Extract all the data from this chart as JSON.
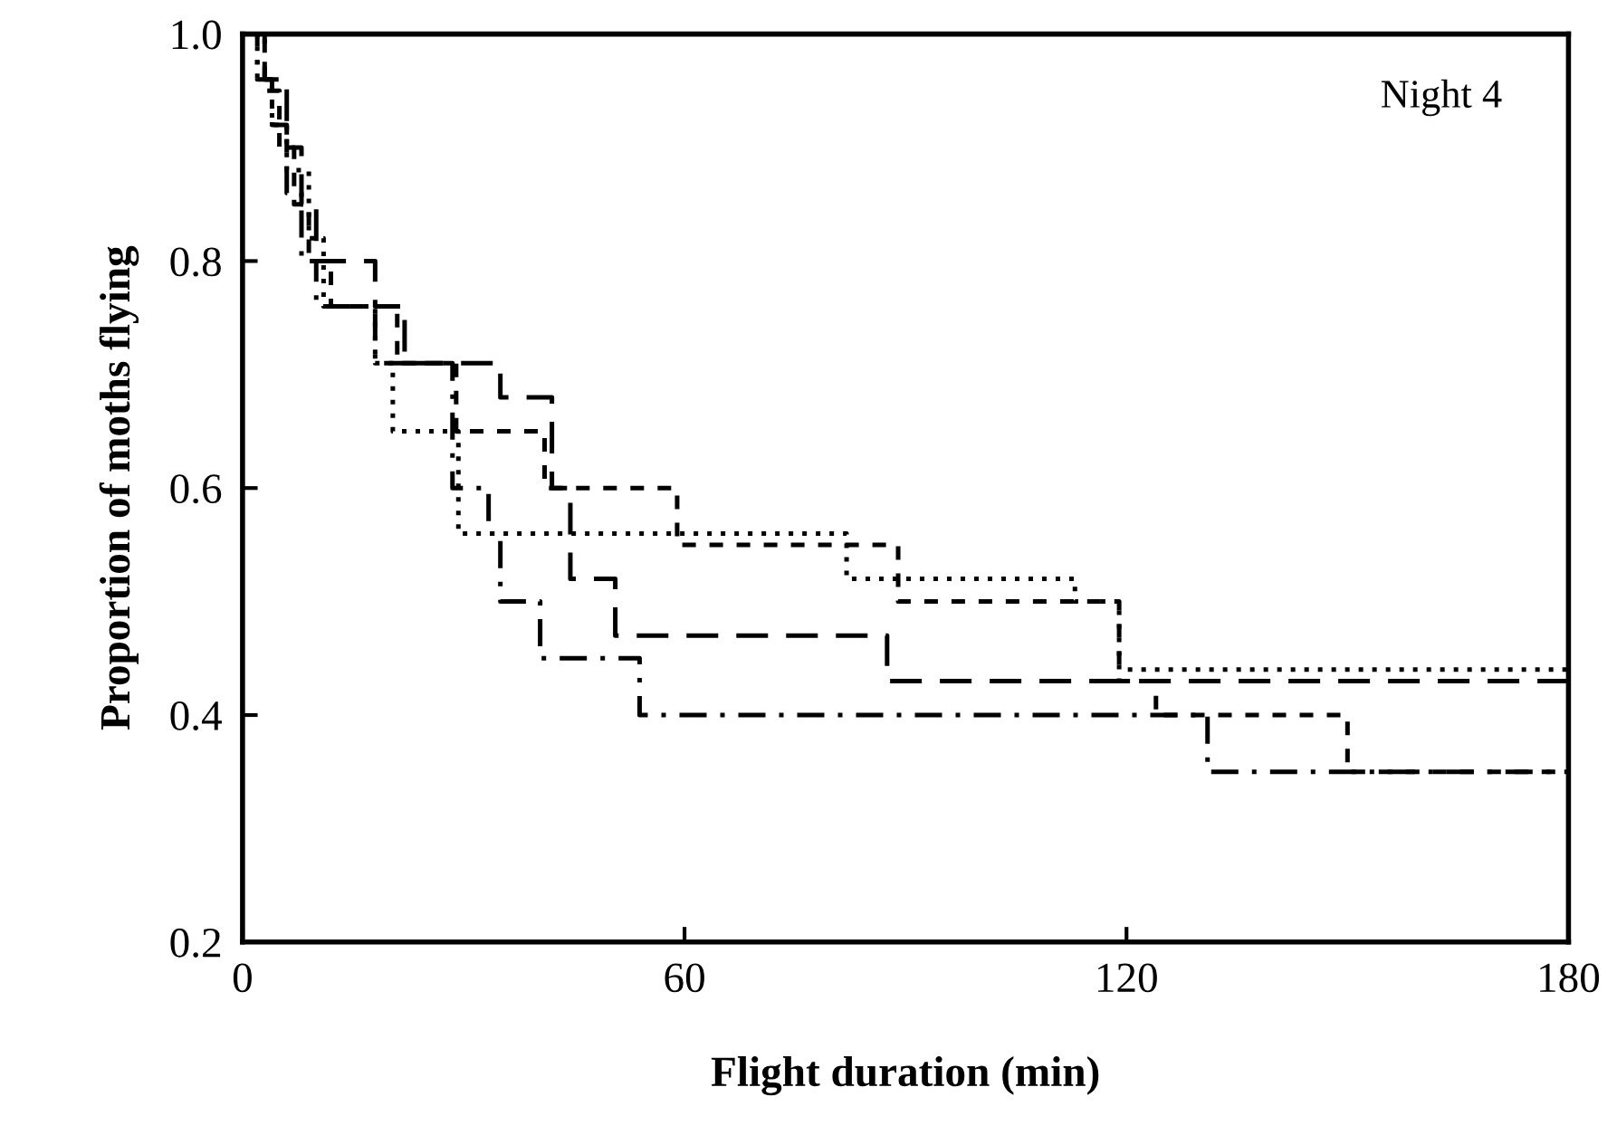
{
  "chart_data": {
    "type": "step",
    "xlabel": "Flight duration (min)",
    "ylabel": "Proportion of moths flying",
    "annotations": [
      "Night 4"
    ],
    "xlim": [
      0,
      180
    ],
    "xticks": [
      0,
      60,
      120,
      180
    ],
    "ylim": [
      0.2,
      1.0
    ],
    "yticks": [
      {
        "value": 0.2,
        "label": "0.2"
      },
      {
        "value": 0.4,
        "label": "0.4"
      },
      {
        "value": 0.6,
        "label": "0.6"
      },
      {
        "value": 0.8,
        "label": "0.8"
      },
      {
        "value": 1.0,
        "label": "1.0"
      }
    ],
    "grid": false,
    "marker": "none",
    "series": [
      {
        "color": "#000000",
        "line_style": "dashed",
        "x": [
          0,
          3,
          6,
          8,
          10,
          18,
          22,
          35,
          42,
          44.5,
          50.6,
          87.5,
          180
        ],
        "values": [
          1.0,
          0.96,
          0.9,
          0.85,
          0.8,
          0.76,
          0.71,
          0.68,
          0.6,
          0.52,
          0.47,
          0.43,
          0.43
        ]
      },
      {
        "color": "#000000",
        "line_style": "dotted",
        "x": [
          0,
          2,
          4,
          6,
          9,
          11,
          18,
          20.4,
          29.3,
          82,
          113,
          119,
          180
        ],
        "values": [
          1.0,
          0.96,
          0.92,
          0.88,
          0.82,
          0.76,
          0.71,
          0.65,
          0.56,
          0.52,
          0.5,
          0.44,
          0.44
        ]
      },
      {
        "color": "#000000",
        "line_style": "dashdot",
        "x": [
          0,
          2,
          4,
          6,
          8,
          10,
          18,
          28.5,
          33.4,
          35,
          40.4,
          53.9,
          131,
          180
        ],
        "values": [
          1.0,
          0.96,
          0.92,
          0.86,
          0.8,
          0.76,
          0.71,
          0.6,
          0.56,
          0.5,
          0.45,
          0.4,
          0.35,
          0.35
        ]
      },
      {
        "color": "#000000",
        "line_style": "shortdash",
        "x": [
          0,
          3,
          5,
          7,
          9,
          12,
          21,
          29,
          41,
          59,
          89,
          119,
          124,
          150,
          180
        ],
        "values": [
          1.0,
          0.95,
          0.9,
          0.85,
          0.8,
          0.76,
          0.71,
          0.65,
          0.6,
          0.55,
          0.5,
          0.43,
          0.4,
          0.35,
          0.35
        ]
      }
    ]
  }
}
